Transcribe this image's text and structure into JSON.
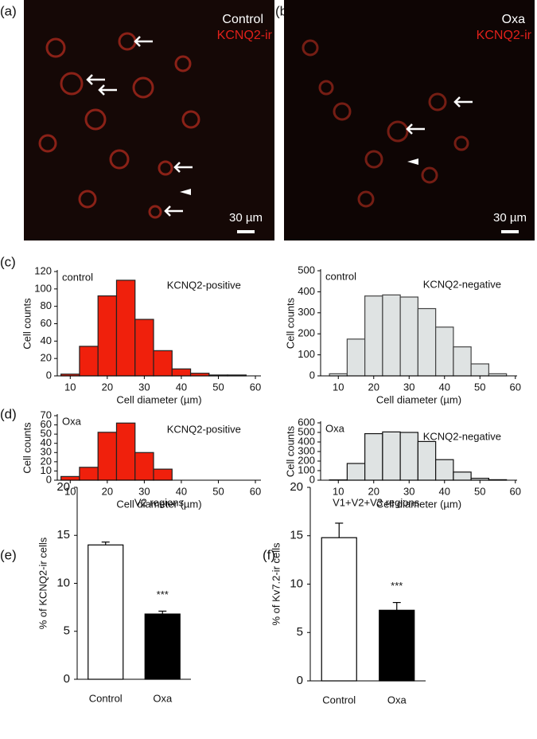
{
  "panel_labels": [
    "(a)",
    "(b)",
    "(c)",
    "(d)",
    "(e)",
    "(f)"
  ],
  "micrographs": [
    {
      "condition": "Control",
      "stain": "KCNQ2-ir",
      "scale_bar": "30 µm"
    },
    {
      "condition": "Oxa",
      "stain": "KCNQ2-ir",
      "scale_bar": "30 µm"
    }
  ],
  "chart_data": [
    {
      "type": "histogram",
      "group": "control",
      "label": "KCNQ2-positive",
      "xlabel": "Cell diameter (µm)",
      "ylabel": "Cell counts",
      "bins": [
        7.5,
        12.5,
        17.5,
        22.5,
        27.5,
        32.5,
        37.5,
        42.5,
        47.5,
        52.5,
        57.5
      ],
      "values": [
        2,
        34,
        92,
        110,
        65,
        29,
        8,
        3,
        1,
        1
      ],
      "color": "#f0200c",
      "edgecolor": "#222222",
      "xlim": [
        6.5,
        61.5
      ],
      "xticks": [
        10,
        20,
        30,
        40,
        50,
        60
      ],
      "ylim": [
        0,
        120
      ],
      "yticks": [
        0,
        20,
        40,
        60,
        80,
        100,
        120
      ]
    },
    {
      "type": "histogram",
      "group": "control",
      "label": "KCNQ2-negative",
      "xlabel": "Cell diameter (µm)",
      "ylabel": "Cell counts",
      "bins": [
        7.5,
        12.5,
        17.5,
        22.5,
        27.5,
        32.5,
        37.5,
        42.5,
        47.5,
        52.5,
        57.5
      ],
      "values": [
        10,
        175,
        380,
        385,
        375,
        320,
        232,
        138,
        57,
        10
      ],
      "color": "#dfe3e3",
      "edgecolor": "#444444",
      "xlim": [
        5,
        60.5
      ],
      "xticks": [
        10,
        20,
        30,
        40,
        50,
        60
      ],
      "ylim": [
        0,
        500
      ],
      "yticks": [
        0,
        100,
        200,
        300,
        400,
        500
      ]
    },
    {
      "type": "histogram",
      "group": "Oxa",
      "label": "KCNQ2-positive",
      "xlabel": "Cell diameter (µm)",
      "ylabel": "Cell counts",
      "bins": [
        7.5,
        12.5,
        17.5,
        22.5,
        27.5,
        32.5,
        37.5
      ],
      "values": [
        4,
        14,
        52,
        62,
        30,
        12
      ],
      "color": "#f0200c",
      "edgecolor": "#222222",
      "xlim": [
        6.5,
        61.5
      ],
      "xticks": [
        10,
        20,
        30,
        40,
        50,
        60
      ],
      "ylim": [
        0,
        70
      ],
      "yticks": [
        0,
        10,
        20,
        30,
        40,
        50,
        60,
        70
      ]
    },
    {
      "type": "histogram",
      "group": "Oxa",
      "label": "KCNQ2-negative",
      "xlabel": "Cell diameter (µm)",
      "ylabel": "Cell counts",
      "bins": [
        7.5,
        12.5,
        17.5,
        22.5,
        27.5,
        32.5,
        37.5,
        42.5,
        47.5,
        52.5,
        57.5
      ],
      "values": [
        3,
        175,
        487,
        505,
        500,
        405,
        215,
        85,
        20,
        5
      ],
      "color": "#dfe3e3",
      "edgecolor": "#111111",
      "xlim": [
        5,
        60.5
      ],
      "xticks": [
        10,
        20,
        30,
        40,
        50,
        60
      ],
      "ylim": [
        0,
        600
      ],
      "yticks": [
        0,
        100,
        200,
        300,
        400,
        500,
        600
      ]
    },
    {
      "type": "bar",
      "subtitle": "V2 regions",
      "ylabel": "% of KCNQ2-ir cells",
      "annotation": "***",
      "categories": [
        "Control",
        "Oxa"
      ],
      "values": [
        14.0,
        6.8
      ],
      "errors": [
        0.3,
        0.3
      ],
      "colors": [
        "#ffffff",
        "#000000"
      ],
      "ylim": [
        0,
        20
      ],
      "yticks": [
        0,
        5,
        10,
        15,
        20
      ]
    },
    {
      "type": "bar",
      "subtitle": "V1+V2+V3 regions",
      "ylabel": "% of Kv7.2-ir cells",
      "annotation": "***",
      "categories": [
        "Control",
        "Oxa"
      ],
      "values": [
        14.8,
        7.3
      ],
      "errors": [
        1.5,
        0.8
      ],
      "colors": [
        "#ffffff",
        "#000000"
      ],
      "ylim": [
        0,
        20
      ],
      "yticks": [
        0,
        5,
        10,
        15,
        20
      ]
    }
  ]
}
